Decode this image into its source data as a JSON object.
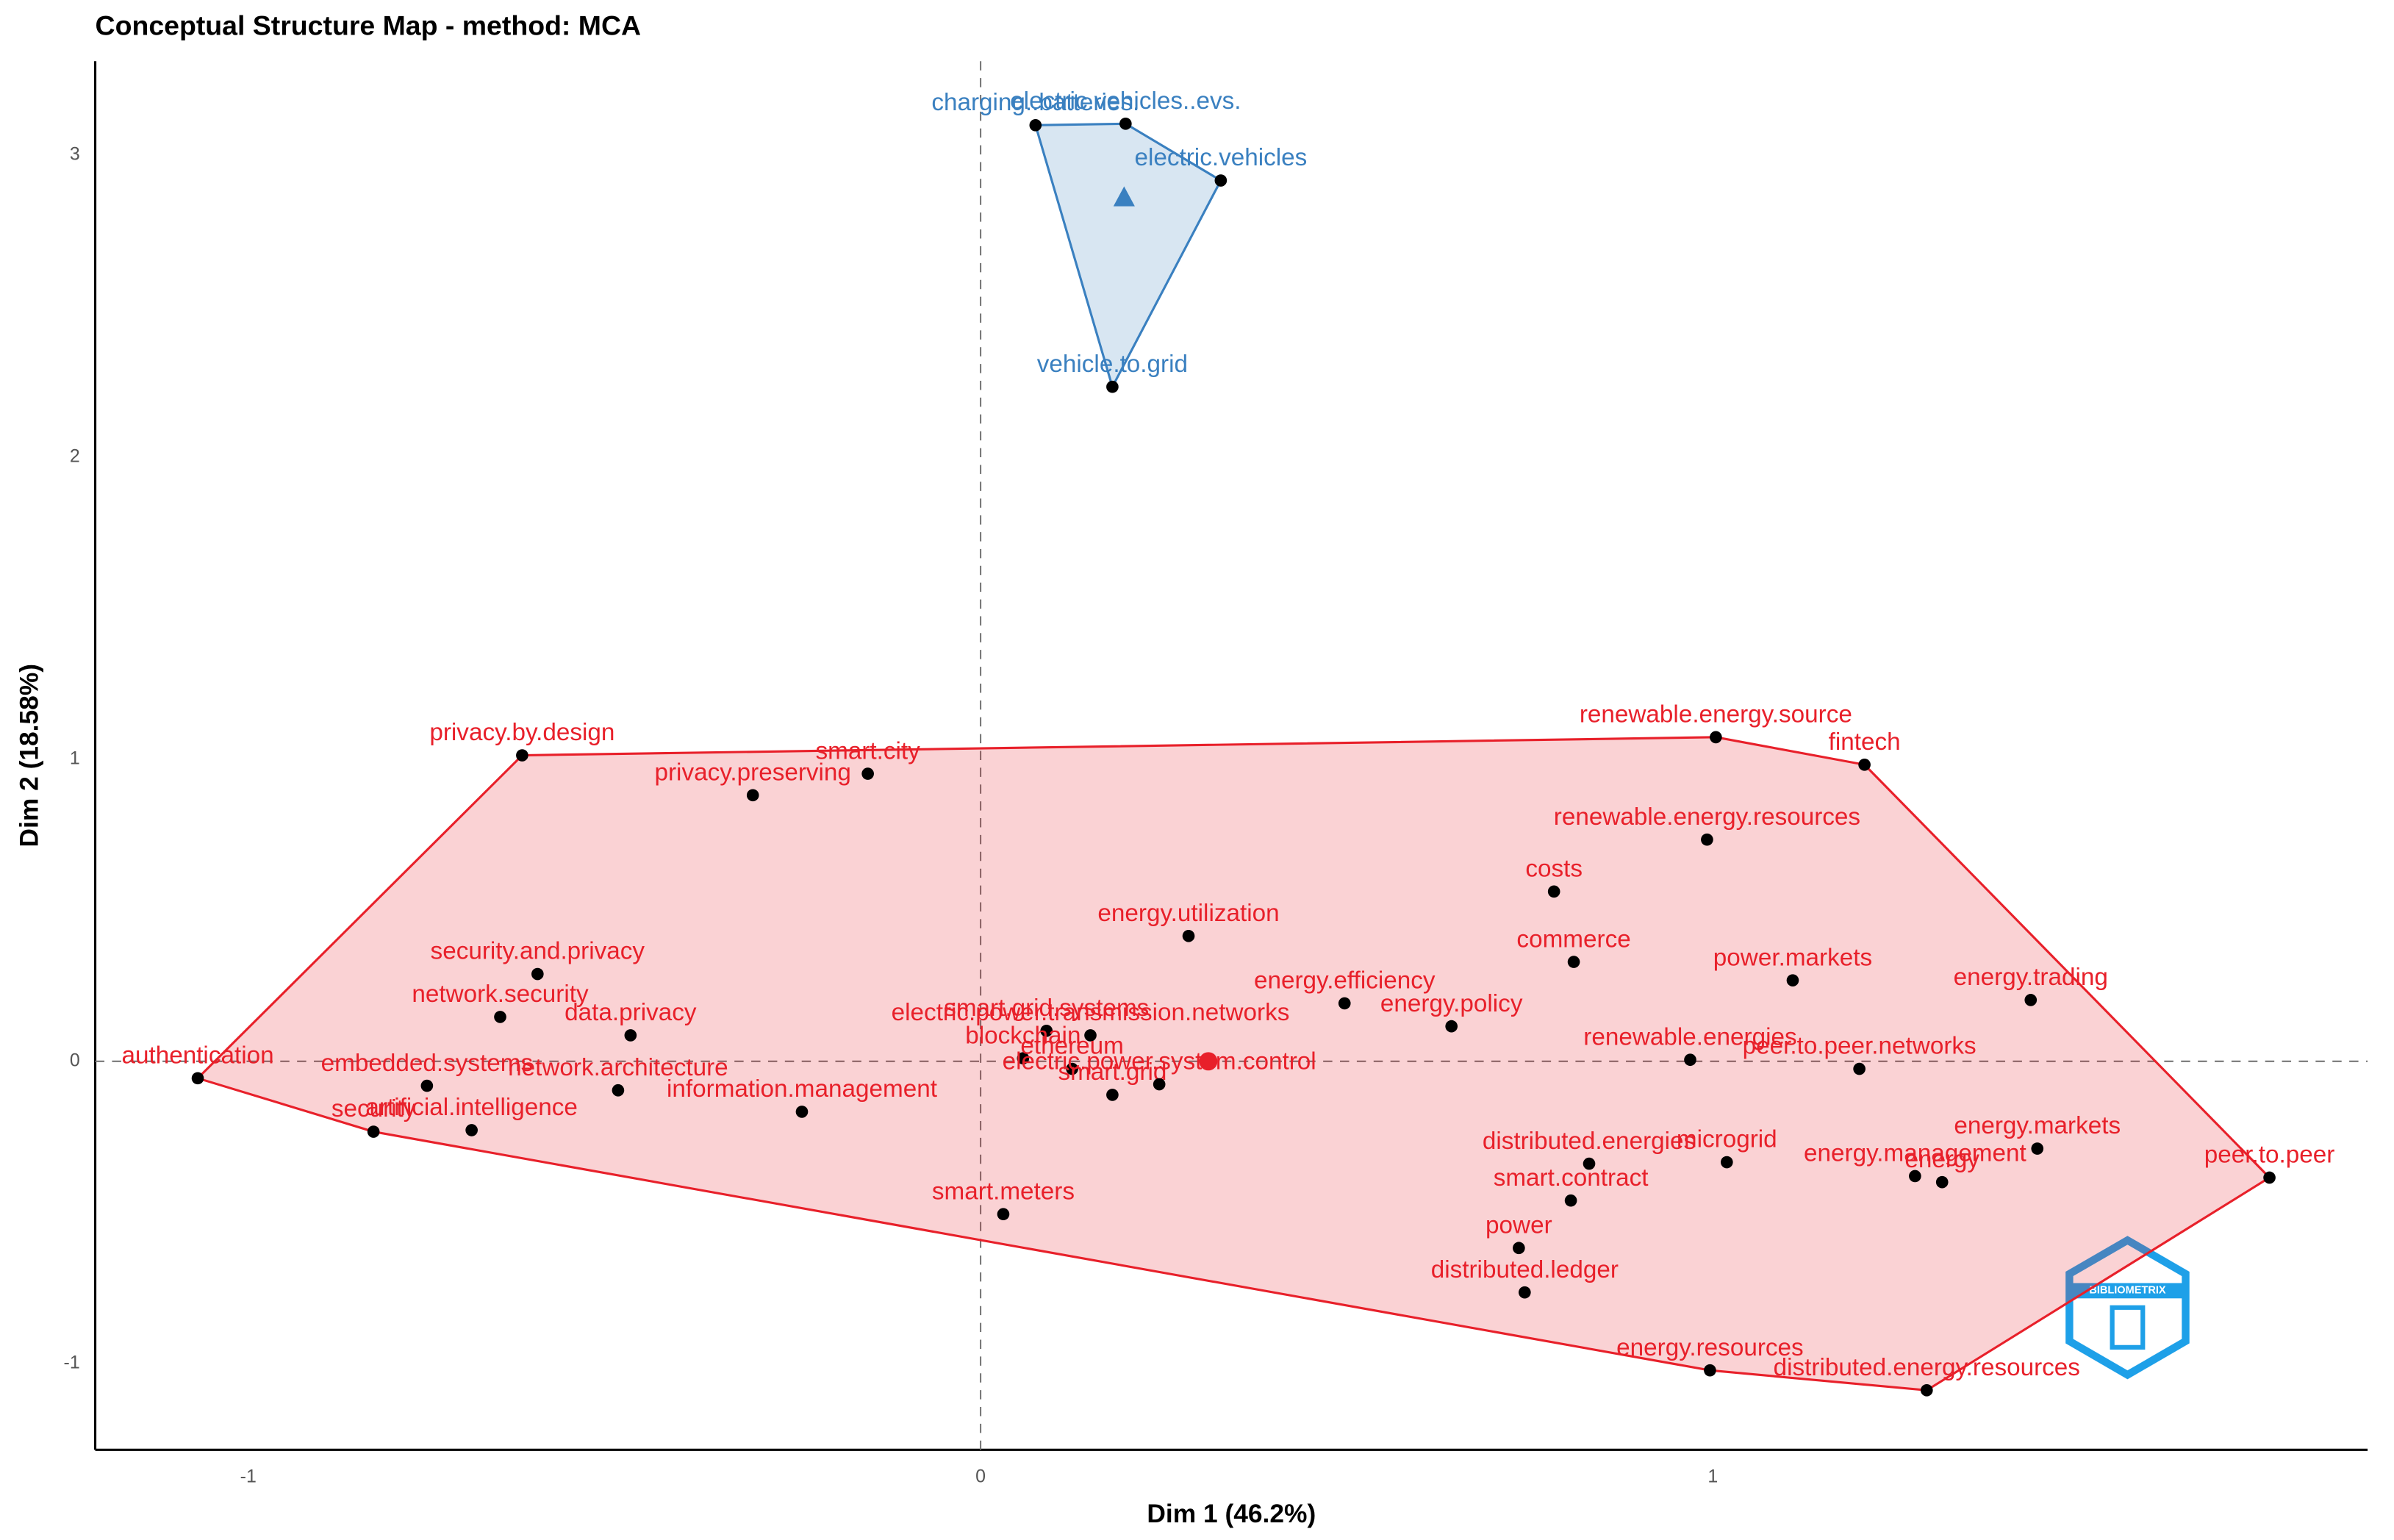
{
  "chart_data": {
    "type": "scatter",
    "title": "Conceptual Structure Map - method: MCA",
    "x_label": "Dim 1 (46.2%)",
    "y_label": "Dim 2 (18.58%)",
    "xlim": [
      -1.209,
      1.894
    ],
    "ylim": [
      -1.286,
      3.311
    ],
    "xticks": [
      -1,
      0,
      1
    ],
    "yticks": [
      -1,
      0,
      1,
      2,
      3
    ],
    "logo_text": "BIBLIOMETRIX",
    "clusters": [
      {
        "color": "#3a80c0",
        "centroid": {
          "x": 0.196,
          "y": 2.856
        },
        "points": [
          {
            "label": "charging..batteries.",
            "x": 0.075,
            "y": 3.099
          },
          {
            "label": "electric.vehicles..evs.",
            "x": 0.198,
            "y": 3.104
          },
          {
            "label": "electric.vehicles",
            "x": 0.328,
            "y": 2.916
          },
          {
            "label": "vehicle.to.grid",
            "x": 0.18,
            "y": 2.233
          }
        ]
      },
      {
        "color": "#e8202a",
        "centroid": {
          "x": 0.311,
          "y": 0
        },
        "points": [
          {
            "label": "authentication",
            "x": -1.069,
            "y": -0.056
          },
          {
            "label": "privacy.by.design",
            "x": -0.626,
            "y": 1.013
          },
          {
            "label": "smart.city",
            "x": -0.154,
            "y": 0.952
          },
          {
            "label": "privacy.preserving",
            "x": -0.311,
            "y": 0.881
          },
          {
            "label": "renewable.energy.source",
            "x": 1.004,
            "y": 1.073
          },
          {
            "label": "fintech",
            "x": 1.207,
            "y": 0.982
          },
          {
            "label": "renewable.energy.resources",
            "x": 0.992,
            "y": 0.734
          },
          {
            "label": "costs",
            "x": 0.783,
            "y": 0.562
          },
          {
            "label": "energy.utilization",
            "x": 0.284,
            "y": 0.415
          },
          {
            "label": "commerce",
            "x": 0.81,
            "y": 0.329
          },
          {
            "label": "security.and.privacy",
            "x": -0.605,
            "y": 0.289
          },
          {
            "label": "network.security",
            "x": -0.656,
            "y": 0.147
          },
          {
            "label": "data.privacy",
            "x": -0.478,
            "y": 0.086
          },
          {
            "label": "energy.efficiency",
            "x": 0.497,
            "y": 0.192
          },
          {
            "label": "energy.policy",
            "x": 0.643,
            "y": 0.116
          },
          {
            "label": "power.markets",
            "x": 1.109,
            "y": 0.268
          },
          {
            "label": "energy.trading",
            "x": 1.434,
            "y": 0.203
          },
          {
            "label": "peer.to.peer.networks",
            "x": 1.2,
            "y": -0.025
          },
          {
            "label": "renewable.energies",
            "x": 0.969,
            "y": 0.005
          },
          {
            "label": "smart.grid.systems",
            "x": 0.09,
            "y": 0.101
          },
          {
            "label": "electric.power.transmission.networks",
            "x": 0.15,
            "y": 0.086
          },
          {
            "label": "blockchain",
            "x": 0.058,
            "y": 0.01
          },
          {
            "label": "ethereum",
            "x": 0.125,
            "y": -0.025
          },
          {
            "label": "smart.grid",
            "x": 0.18,
            "y": -0.111
          },
          {
            "label": "electric.power.system.control",
            "x": 0.244,
            "y": -0.076
          },
          {
            "label": "embedded.systems",
            "x": -0.756,
            "y": -0.081
          },
          {
            "label": "network.architecture",
            "x": -0.495,
            "y": -0.096
          },
          {
            "label": "security",
            "x": -0.829,
            "y": -0.233
          },
          {
            "label": "artificial.intelligence",
            "x": -0.695,
            "y": -0.228
          },
          {
            "label": "information.management",
            "x": -0.244,
            "y": -0.167
          },
          {
            "label": "smart.meters",
            "x": 0.031,
            "y": -0.506
          },
          {
            "label": "distributed.energies",
            "x": 0.831,
            "y": -0.339
          },
          {
            "label": "microgrid",
            "x": 1.019,
            "y": -0.334
          },
          {
            "label": "energy.management",
            "x": 1.276,
            "y": -0.38
          },
          {
            "label": "energy",
            "x": 1.313,
            "y": -0.4
          },
          {
            "label": "energy.markets",
            "x": 1.443,
            "y": -0.289
          },
          {
            "label": "peer.to.peer",
            "x": 1.76,
            "y": -0.385
          },
          {
            "label": "smart.contract",
            "x": 0.806,
            "y": -0.461
          },
          {
            "label": "power",
            "x": 0.735,
            "y": -0.618
          },
          {
            "label": "distributed.ledger",
            "x": 0.743,
            "y": -0.765
          },
          {
            "label": "energy.resources",
            "x": 0.996,
            "y": -1.023
          },
          {
            "label": "distributed.energy.resources",
            "x": 1.292,
            "y": -1.089
          }
        ]
      }
    ]
  }
}
